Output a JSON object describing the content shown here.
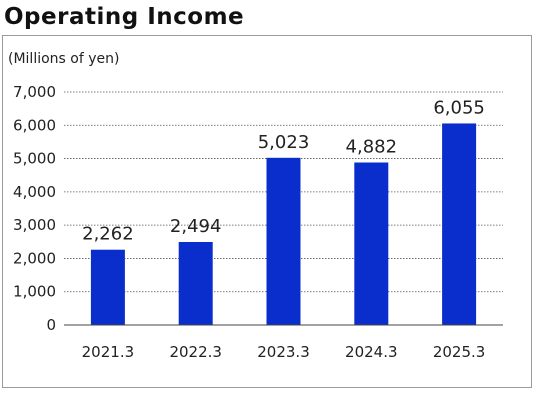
{
  "title": "Operating Income",
  "chart_data": {
    "type": "bar",
    "title": "Operating Income",
    "ylabel": "(Millions of yen)",
    "xlabel": "",
    "categories": [
      "2021.3",
      "2022.3",
      "2023.3",
      "2024.3",
      "2025.3"
    ],
    "values": [
      2262,
      2494,
      5023,
      4882,
      6055
    ],
    "data_labels": [
      "2,262",
      "2,494",
      "5,023",
      "4,882",
      "6,055"
    ],
    "ylim": [
      0,
      7000
    ],
    "yticks": [
      0,
      1000,
      2000,
      3000,
      4000,
      5000,
      6000,
      7000
    ],
    "ytick_labels": [
      "0",
      "1,000",
      "2,000",
      "3,000",
      "4,000",
      "5,000",
      "6,000",
      "7,000"
    ],
    "grid": true,
    "bar_color": "#0a2ecc"
  }
}
